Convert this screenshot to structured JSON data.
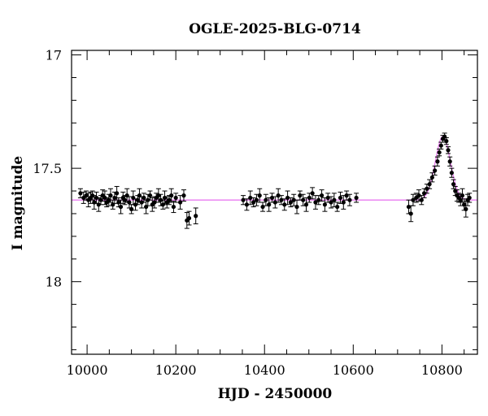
{
  "chart_data": {
    "type": "scatter",
    "title": "OGLE-2025-BLG-0714",
    "xlabel": "HJD - 2450000",
    "ylabel": "I magnitude",
    "xlim": [
      9965,
      10880
    ],
    "ylim": [
      18.32,
      16.98
    ],
    "y_inverted": true,
    "x_ticks": [
      "10000",
      "10200",
      "10400",
      "10600",
      "10800"
    ],
    "y_ticks": [
      "17",
      "17.5",
      "18"
    ],
    "grid": false,
    "series": [
      {
        "kind": "points_with_errorbars",
        "color": "#000000",
        "x": [
          9985,
          9992,
          9998,
          10003,
          10008,
          10012,
          10016,
          10021,
          10026,
          10031,
          10035,
          10040,
          10044,
          10049,
          10053,
          10058,
          10062,
          10067,
          10071,
          10076,
          10081,
          10085,
          10090,
          10095,
          10100,
          10104,
          10109,
          10114,
          10118,
          10123,
          10128,
          10133,
          10137,
          10142,
          10147,
          10152,
          10156,
          10161,
          10166,
          10171,
          10175,
          10180,
          10185,
          10190,
          10195,
          10200,
          10210,
          10218,
          10225,
          10230,
          10245,
          10352,
          10360,
          10368,
          10375,
          10382,
          10389,
          10396,
          10403,
          10410,
          10417,
          10424,
          10431,
          10438,
          10445,
          10452,
          10459,
          10466,
          10473,
          10480,
          10487,
          10494,
          10501,
          10508,
          10515,
          10522,
          10529,
          10536,
          10543,
          10550,
          10557,
          10564,
          10571,
          10578,
          10585,
          10592,
          10607,
          10725,
          10730,
          10735,
          10742,
          10748,
          10754,
          10760,
          10766,
          10772,
          10778,
          10784,
          10790,
          10794,
          10798,
          10802,
          10806,
          10810,
          10814,
          10818,
          10822,
          10826,
          10830,
          10834,
          10838,
          10842,
          10846,
          10850,
          10854,
          10858,
          10862
        ],
        "y": [
          17.61,
          17.63,
          17.62,
          17.64,
          17.63,
          17.62,
          17.65,
          17.63,
          17.66,
          17.64,
          17.62,
          17.63,
          17.65,
          17.64,
          17.62,
          17.66,
          17.63,
          17.61,
          17.65,
          17.67,
          17.63,
          17.64,
          17.62,
          17.65,
          17.68,
          17.63,
          17.66,
          17.64,
          17.62,
          17.65,
          17.63,
          17.67,
          17.64,
          17.62,
          17.66,
          17.65,
          17.63,
          17.62,
          17.64,
          17.66,
          17.63,
          17.65,
          17.64,
          17.62,
          17.67,
          17.63,
          17.65,
          17.62,
          17.73,
          17.72,
          17.71,
          17.64,
          17.66,
          17.63,
          17.65,
          17.64,
          17.62,
          17.67,
          17.64,
          17.66,
          17.63,
          17.65,
          17.62,
          17.64,
          17.66,
          17.63,
          17.65,
          17.64,
          17.67,
          17.62,
          17.64,
          17.66,
          17.63,
          17.61,
          17.65,
          17.64,
          17.62,
          17.66,
          17.63,
          17.65,
          17.64,
          17.67,
          17.63,
          17.65,
          17.62,
          17.64,
          17.63,
          17.67,
          17.7,
          17.64,
          17.63,
          17.62,
          17.64,
          17.61,
          17.59,
          17.57,
          17.54,
          17.51,
          17.47,
          17.43,
          17.4,
          17.37,
          17.36,
          17.38,
          17.42,
          17.47,
          17.52,
          17.57,
          17.6,
          17.62,
          17.63,
          17.64,
          17.62,
          17.66,
          17.68,
          17.64,
          17.63
        ],
        "yerr": [
          0.02,
          0.025,
          0.02,
          0.03,
          0.025,
          0.02,
          0.03,
          0.025,
          0.03,
          0.02,
          0.025,
          0.03,
          0.02,
          0.025,
          0.03,
          0.02,
          0.025,
          0.03,
          0.02,
          0.03,
          0.025,
          0.02,
          0.03,
          0.025,
          0.02,
          0.03,
          0.025,
          0.02,
          0.03,
          0.025,
          0.02,
          0.03,
          0.025,
          0.02,
          0.03,
          0.025,
          0.02,
          0.03,
          0.025,
          0.02,
          0.03,
          0.025,
          0.02,
          0.03,
          0.025,
          0.02,
          0.03,
          0.025,
          0.035,
          0.03,
          0.035,
          0.02,
          0.025,
          0.03,
          0.02,
          0.025,
          0.03,
          0.02,
          0.025,
          0.03,
          0.02,
          0.025,
          0.03,
          0.02,
          0.025,
          0.03,
          0.02,
          0.025,
          0.03,
          0.02,
          0.025,
          0.03,
          0.02,
          0.025,
          0.03,
          0.02,
          0.025,
          0.03,
          0.02,
          0.025,
          0.03,
          0.02,
          0.025,
          0.03,
          0.02,
          0.025,
          0.02,
          0.03,
          0.035,
          0.025,
          0.02,
          0.025,
          0.02,
          0.02,
          0.02,
          0.02,
          0.02,
          0.02,
          0.02,
          0.015,
          0.015,
          0.015,
          0.015,
          0.015,
          0.015,
          0.02,
          0.02,
          0.02,
          0.02,
          0.025,
          0.02,
          0.025,
          0.03,
          0.025,
          0.035,
          0.025,
          0.02
        ]
      },
      {
        "kind": "model_curve",
        "color": "#e97bf0",
        "baseline": 17.64,
        "peak_x": 10802,
        "peak_y": 17.36,
        "width": 17
      }
    ]
  }
}
